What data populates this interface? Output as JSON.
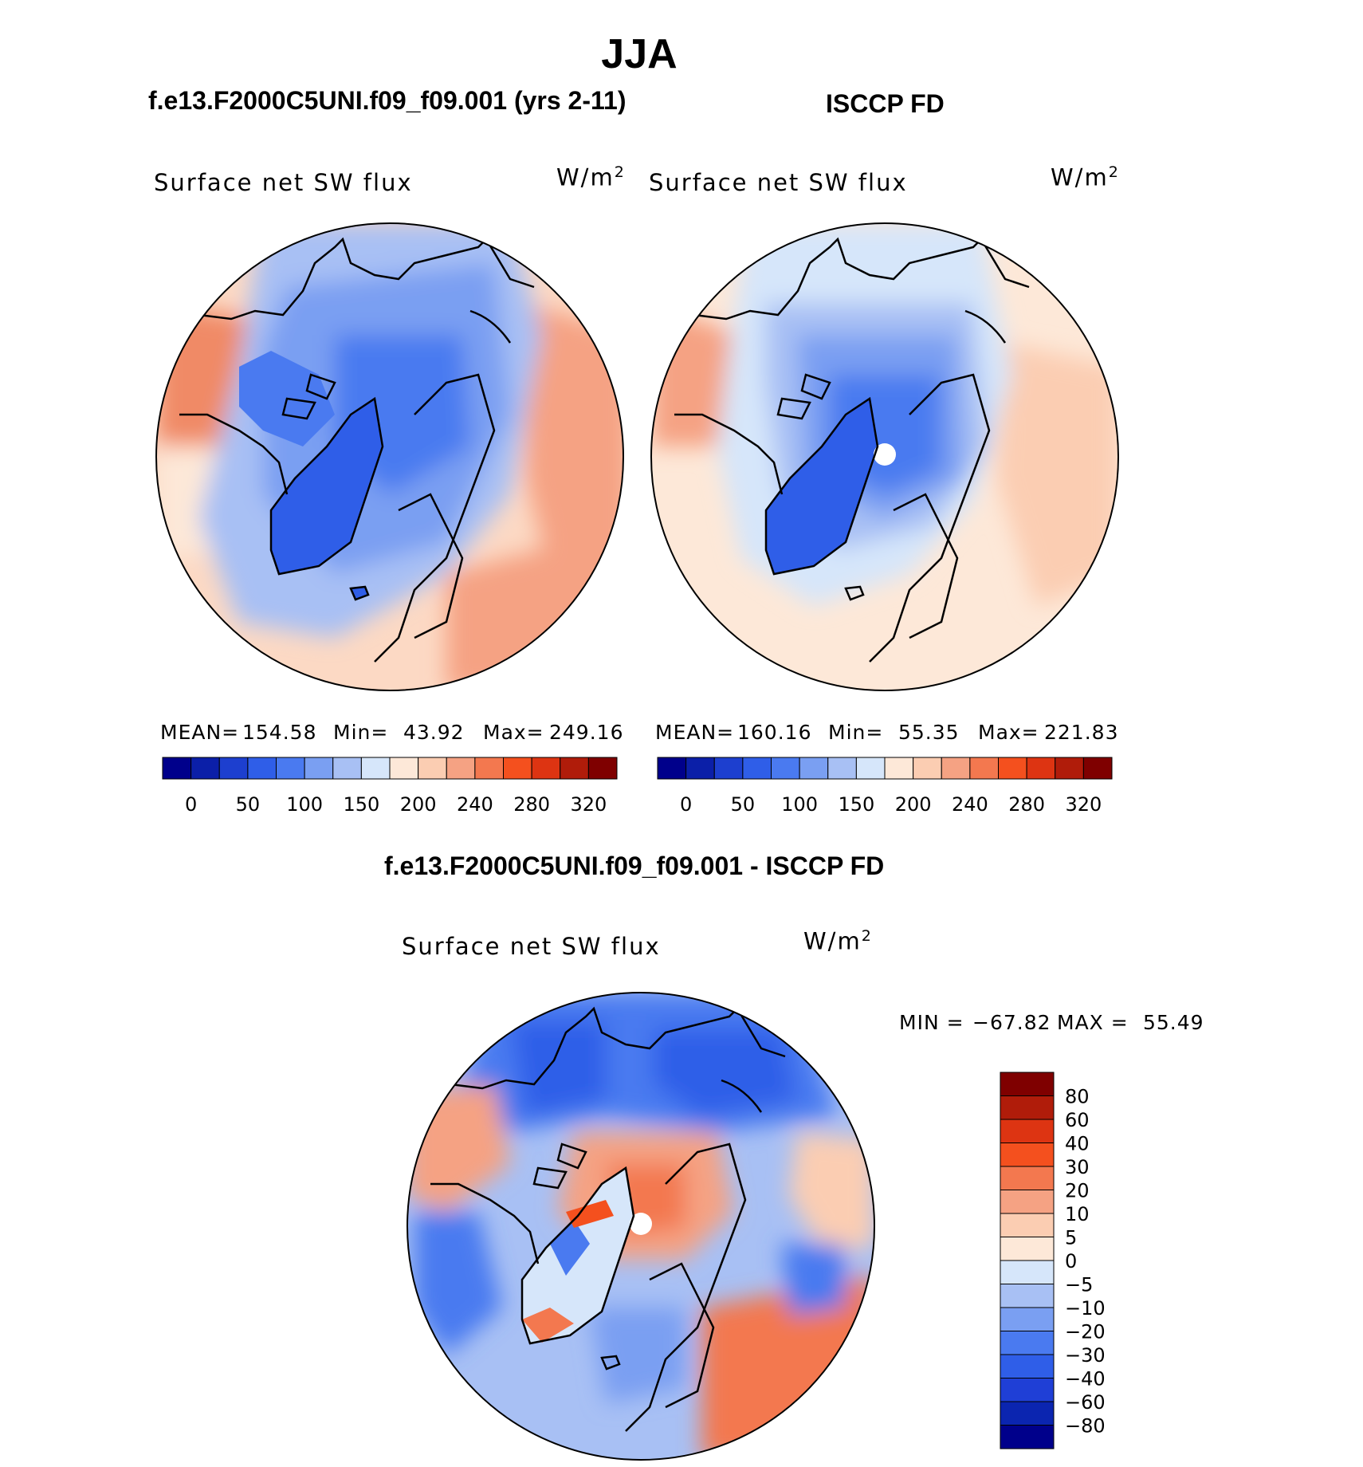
{
  "header": {
    "season": "JJA",
    "left_title": "f.e13.F2000C5UNI.f09_f09.001 (yrs 2-11)",
    "right_title": "ISCCP FD",
    "diff_title": "f.e13.F2000C5UNI.f09_f09.001 - ISCCP FD"
  },
  "panels": [
    {
      "variable": "Surface net SW flux",
      "units_base": "W/m",
      "units_exp": "2",
      "mean_label": "MEAN=",
      "mean": "154.58",
      "min_label": "Min=",
      "min": "43.92",
      "max_label": "Max=",
      "max": "249.16"
    },
    {
      "variable": "Surface net SW flux",
      "units_base": "W/m",
      "units_exp": "2",
      "mean_label": "MEAN=",
      "mean": "160.16",
      "min_label": "Min=",
      "min": "55.35",
      "max_label": "Max=",
      "max": "221.83"
    }
  ],
  "diff_panel": {
    "variable": "Surface net SW flux",
    "units_base": "W/m",
    "units_exp": "2",
    "min_label": "MIN =",
    "min": "−67.82",
    "max_label": "MAX =",
    "max": "55.49"
  },
  "colors": {
    "abs_scale": [
      "#00008b",
      "#0b1fa8",
      "#1d3fcf",
      "#2f5ee8",
      "#4a7af0",
      "#7a9ff2",
      "#a8c0f4",
      "#d6e6fa",
      "#fde8d8",
      "#fbcdb2",
      "#f5a283",
      "#f3784f",
      "#f4501e",
      "#dd3412",
      "#b01c0a",
      "#7f0000"
    ],
    "diff_scale": [
      "#00008b",
      "#0b25b0",
      "#1f3fd6",
      "#2f5ee8",
      "#4a7af0",
      "#7a9ff2",
      "#a8c0f4",
      "#d6e6fa",
      "#fde8d8",
      "#fbcdb2",
      "#f5a283",
      "#f3784f",
      "#f4501e",
      "#dd3412",
      "#b01c0a",
      "#7f0000"
    ]
  },
  "chart_data": [
    {
      "type": "heatmap",
      "projection": "north-polar-stereographic",
      "title": "f.e13.F2000C5UNI.f09_f09.001 (yrs 2-11)",
      "variable": "Surface net SW flux",
      "units": "W/m2",
      "stats": {
        "mean": 154.58,
        "min": 43.92,
        "max": 249.16
      },
      "colorbar_levels": [
        0,
        25,
        50,
        75,
        100,
        125,
        150,
        175,
        200,
        220,
        240,
        260,
        280,
        300,
        320
      ],
      "colorbar_tick_labels": [
        "0",
        "50",
        "100",
        "150",
        "200",
        "240",
        "280",
        "320"
      ]
    },
    {
      "type": "heatmap",
      "projection": "north-polar-stereographic",
      "title": "ISCCP FD",
      "variable": "Surface net SW flux",
      "units": "W/m2",
      "stats": {
        "mean": 160.16,
        "min": 55.35,
        "max": 221.83
      },
      "colorbar_levels": [
        0,
        25,
        50,
        75,
        100,
        125,
        150,
        175,
        200,
        220,
        240,
        260,
        280,
        300,
        320
      ],
      "colorbar_tick_labels": [
        "0",
        "50",
        "100",
        "150",
        "200",
        "240",
        "280",
        "320"
      ]
    },
    {
      "type": "heatmap",
      "projection": "north-polar-stereographic",
      "title": "f.e13.F2000C5UNI.f09_f09.001 - ISCCP FD",
      "variable": "Surface net SW flux",
      "units": "W/m2",
      "stats": {
        "min": -67.82,
        "max": 55.49
      },
      "colorbar_levels": [
        -80,
        -60,
        -40,
        -30,
        -20,
        -10,
        -5,
        0,
        5,
        10,
        20,
        30,
        40,
        60,
        80
      ],
      "colorbar_tick_labels": [
        "80",
        "60",
        "40",
        "30",
        "20",
        "10",
        "5",
        "0",
        "−5",
        "−10",
        "−20",
        "−30",
        "−40",
        "−60",
        "−80"
      ]
    }
  ]
}
